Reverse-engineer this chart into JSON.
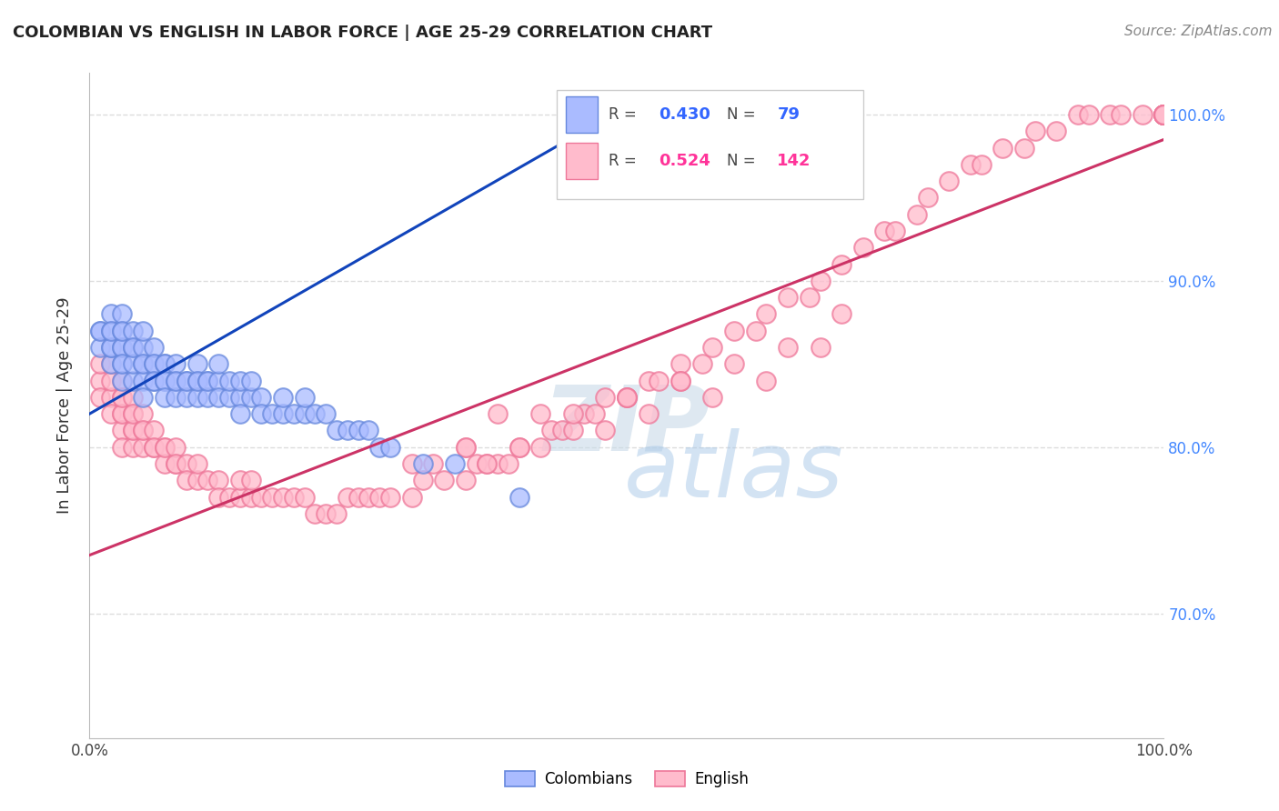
{
  "title": "COLOMBIAN VS ENGLISH IN LABOR FORCE | AGE 25-29 CORRELATION CHART",
  "source_text": "Source: ZipAtlas.com",
  "ylabel": "In Labor Force | Age 25-29",
  "colombian_color_face": "#aabbff",
  "colombian_color_edge": "#6688dd",
  "english_color_face": "#ffbbcc",
  "english_color_edge": "#ee7799",
  "blue_line_color": "#1144bb",
  "pink_line_color": "#cc3366",
  "background_color": "#ffffff",
  "grid_color": "#dddddd",
  "xlim": [
    0.0,
    1.0
  ],
  "ylim": [
    0.625,
    1.025
  ],
  "blue_line": [
    0.0,
    0.82,
    0.5,
    1.005
  ],
  "pink_line": [
    0.0,
    0.735,
    1.0,
    0.985
  ],
  "colombian_x": [
    0.01,
    0.01,
    0.01,
    0.02,
    0.02,
    0.02,
    0.02,
    0.02,
    0.02,
    0.03,
    0.03,
    0.03,
    0.03,
    0.03,
    0.03,
    0.03,
    0.03,
    0.04,
    0.04,
    0.04,
    0.04,
    0.04,
    0.05,
    0.05,
    0.05,
    0.05,
    0.05,
    0.05,
    0.06,
    0.06,
    0.06,
    0.06,
    0.06,
    0.07,
    0.07,
    0.07,
    0.07,
    0.07,
    0.08,
    0.08,
    0.08,
    0.08,
    0.09,
    0.09,
    0.09,
    0.1,
    0.1,
    0.1,
    0.1,
    0.11,
    0.11,
    0.11,
    0.12,
    0.12,
    0.12,
    0.13,
    0.13,
    0.14,
    0.14,
    0.14,
    0.15,
    0.15,
    0.16,
    0.16,
    0.17,
    0.18,
    0.18,
    0.19,
    0.2,
    0.2,
    0.21,
    0.22,
    0.23,
    0.24,
    0.25,
    0.26,
    0.27,
    0.28,
    0.31,
    0.34,
    0.4
  ],
  "colombian_y": [
    0.87,
    0.86,
    0.87,
    0.85,
    0.86,
    0.87,
    0.88,
    0.86,
    0.87,
    0.86,
    0.87,
    0.88,
    0.85,
    0.86,
    0.87,
    0.84,
    0.85,
    0.86,
    0.87,
    0.84,
    0.85,
    0.86,
    0.85,
    0.86,
    0.87,
    0.84,
    0.85,
    0.83,
    0.85,
    0.86,
    0.84,
    0.85,
    0.84,
    0.85,
    0.84,
    0.85,
    0.84,
    0.83,
    0.84,
    0.85,
    0.83,
    0.84,
    0.84,
    0.83,
    0.84,
    0.84,
    0.85,
    0.83,
    0.84,
    0.84,
    0.83,
    0.84,
    0.84,
    0.83,
    0.85,
    0.83,
    0.84,
    0.83,
    0.84,
    0.82,
    0.83,
    0.84,
    0.83,
    0.82,
    0.82,
    0.82,
    0.83,
    0.82,
    0.82,
    0.83,
    0.82,
    0.82,
    0.81,
    0.81,
    0.81,
    0.81,
    0.8,
    0.8,
    0.79,
    0.79,
    0.77
  ],
  "english_x": [
    0.01,
    0.01,
    0.01,
    0.02,
    0.02,
    0.02,
    0.02,
    0.03,
    0.03,
    0.03,
    0.03,
    0.03,
    0.03,
    0.03,
    0.04,
    0.04,
    0.04,
    0.04,
    0.04,
    0.04,
    0.05,
    0.05,
    0.05,
    0.05,
    0.06,
    0.06,
    0.06,
    0.07,
    0.07,
    0.07,
    0.08,
    0.08,
    0.08,
    0.09,
    0.09,
    0.1,
    0.1,
    0.11,
    0.12,
    0.12,
    0.13,
    0.14,
    0.14,
    0.15,
    0.15,
    0.16,
    0.17,
    0.18,
    0.19,
    0.2,
    0.21,
    0.22,
    0.23,
    0.24,
    0.25,
    0.26,
    0.27,
    0.28,
    0.3,
    0.31,
    0.33,
    0.35,
    0.36,
    0.37,
    0.38,
    0.39,
    0.4,
    0.42,
    0.43,
    0.44,
    0.45,
    0.46,
    0.47,
    0.48,
    0.5,
    0.52,
    0.53,
    0.55,
    0.55,
    0.57,
    0.58,
    0.6,
    0.62,
    0.63,
    0.65,
    0.67,
    0.68,
    0.7,
    0.72,
    0.74,
    0.75,
    0.77,
    0.78,
    0.8,
    0.82,
    0.83,
    0.85,
    0.87,
    0.88,
    0.9,
    0.92,
    0.93,
    0.95,
    0.96,
    0.98,
    1.0,
    1.0,
    1.0,
    1.0,
    1.0,
    1.0,
    1.0,
    1.0,
    1.0,
    1.0,
    1.0,
    1.0,
    0.38,
    0.42,
    0.5,
    0.55,
    0.6,
    0.65,
    0.7,
    0.35,
    0.4,
    0.48,
    0.52,
    0.58,
    0.63,
    0.68,
    0.3,
    0.35,
    0.45,
    0.5,
    0.32,
    0.37
  ],
  "english_y": [
    0.84,
    0.85,
    0.83,
    0.83,
    0.84,
    0.85,
    0.82,
    0.82,
    0.83,
    0.84,
    0.81,
    0.82,
    0.83,
    0.8,
    0.82,
    0.83,
    0.81,
    0.8,
    0.81,
    0.82,
    0.81,
    0.82,
    0.8,
    0.81,
    0.8,
    0.81,
    0.8,
    0.8,
    0.79,
    0.8,
    0.79,
    0.8,
    0.79,
    0.79,
    0.78,
    0.78,
    0.79,
    0.78,
    0.78,
    0.77,
    0.77,
    0.77,
    0.78,
    0.77,
    0.78,
    0.77,
    0.77,
    0.77,
    0.77,
    0.77,
    0.76,
    0.76,
    0.76,
    0.77,
    0.77,
    0.77,
    0.77,
    0.77,
    0.77,
    0.78,
    0.78,
    0.78,
    0.79,
    0.79,
    0.79,
    0.79,
    0.8,
    0.8,
    0.81,
    0.81,
    0.81,
    0.82,
    0.82,
    0.83,
    0.83,
    0.84,
    0.84,
    0.85,
    0.84,
    0.85,
    0.86,
    0.87,
    0.87,
    0.88,
    0.89,
    0.89,
    0.9,
    0.91,
    0.92,
    0.93,
    0.93,
    0.94,
    0.95,
    0.96,
    0.97,
    0.97,
    0.98,
    0.98,
    0.99,
    0.99,
    1.0,
    1.0,
    1.0,
    1.0,
    1.0,
    1.0,
    1.0,
    1.0,
    1.0,
    1.0,
    1.0,
    1.0,
    1.0,
    1.0,
    1.0,
    1.0,
    1.0,
    0.82,
    0.82,
    0.83,
    0.84,
    0.85,
    0.86,
    0.88,
    0.8,
    0.8,
    0.81,
    0.82,
    0.83,
    0.84,
    0.86,
    0.79,
    0.8,
    0.82,
    0.83,
    0.79,
    0.79
  ]
}
